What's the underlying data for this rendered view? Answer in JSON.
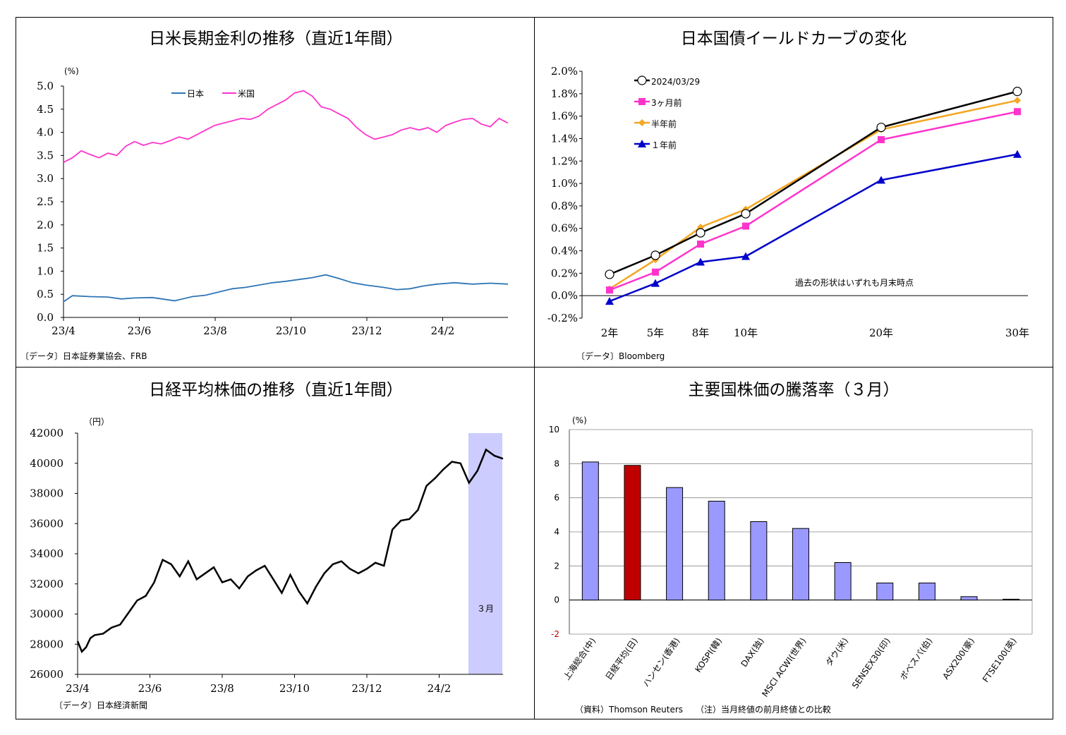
{
  "chart_data": [
    {
      "type": "line",
      "title": "日米長期金利の推移（直近1年間）",
      "ylabel": "(%)",
      "ylim": [
        0.0,
        5.0
      ],
      "yticks": [
        "0.0",
        "0.5",
        "1.0",
        "1.5",
        "2.0",
        "2.5",
        "3.0",
        "3.5",
        "4.0",
        "4.5",
        "5.0"
      ],
      "xticks": [
        "23/4",
        "23/6",
        "23/8",
        "23/10",
        "23/12",
        "24/2"
      ],
      "source": "〔データ〕日本証券業協会、FRB",
      "colors": {
        "japan": "#2e75b6",
        "us": "#ff33cc"
      },
      "series": [
        {
          "name": "日本",
          "x": [
            0,
            0.02,
            0.06,
            0.1,
            0.13,
            0.16,
            0.2,
            0.25,
            0.29,
            0.32,
            0.35,
            0.38,
            0.41,
            0.44,
            0.47,
            0.5,
            0.53,
            0.56,
            0.59,
            0.62,
            0.65,
            0.68,
            0.72,
            0.75,
            0.78,
            0.81,
            0.84,
            0.88,
            0.92,
            0.96,
            1.0
          ],
          "values": [
            0.34,
            0.47,
            0.45,
            0.44,
            0.4,
            0.42,
            0.43,
            0.36,
            0.45,
            0.48,
            0.55,
            0.62,
            0.65,
            0.7,
            0.75,
            0.78,
            0.82,
            0.86,
            0.92,
            0.84,
            0.75,
            0.7,
            0.65,
            0.6,
            0.62,
            0.68,
            0.72,
            0.75,
            0.72,
            0.74,
            0.72
          ]
        },
        {
          "name": "米国",
          "x": [
            0,
            0.02,
            0.04,
            0.06,
            0.08,
            0.1,
            0.12,
            0.14,
            0.16,
            0.18,
            0.2,
            0.22,
            0.24,
            0.26,
            0.28,
            0.3,
            0.32,
            0.34,
            0.36,
            0.38,
            0.4,
            0.42,
            0.44,
            0.46,
            0.48,
            0.5,
            0.52,
            0.54,
            0.56,
            0.58,
            0.6,
            0.62,
            0.64,
            0.66,
            0.68,
            0.7,
            0.72,
            0.74,
            0.76,
            0.78,
            0.8,
            0.82,
            0.84,
            0.86,
            0.88,
            0.9,
            0.92,
            0.94,
            0.96,
            0.98,
            1.0
          ],
          "values": [
            3.35,
            3.45,
            3.6,
            3.52,
            3.45,
            3.55,
            3.5,
            3.7,
            3.8,
            3.72,
            3.78,
            3.75,
            3.82,
            3.9,
            3.85,
            3.95,
            4.05,
            4.15,
            4.2,
            4.25,
            4.3,
            4.28,
            4.35,
            4.5,
            4.6,
            4.7,
            4.85,
            4.9,
            4.78,
            4.55,
            4.5,
            4.4,
            4.3,
            4.1,
            3.95,
            3.85,
            3.9,
            3.95,
            4.05,
            4.1,
            4.05,
            4.1,
            4.0,
            4.15,
            4.22,
            4.28,
            4.3,
            4.18,
            4.12,
            4.3,
            4.2
          ]
        }
      ]
    },
    {
      "type": "line",
      "title": "日本国債イールドカーブの変化",
      "ylim": [
        -0.2,
        2.0
      ],
      "yticks": [
        "-0.2%",
        "0.0%",
        "0.2%",
        "0.4%",
        "0.6%",
        "0.8%",
        "1.0%",
        "1.2%",
        "1.4%",
        "1.6%",
        "1.8%",
        "2.0%"
      ],
      "x": [
        2,
        5,
        8,
        10,
        20,
        30
      ],
      "xticks": [
        "2年",
        "5年",
        "8年",
        "10年",
        "20年",
        "30年"
      ],
      "note": "過去の形状はいずれも月末時点",
      "source": "〔データ〕Bloomberg",
      "series": [
        {
          "name": "2024/03/29",
          "color": "#000000",
          "marker": "circle",
          "values": [
            0.19,
            0.36,
            0.56,
            0.73,
            1.5,
            1.82
          ]
        },
        {
          "name": "3ヶ月前",
          "color": "#ff33cc",
          "marker": "square",
          "values": [
            0.05,
            0.21,
            0.46,
            0.62,
            1.39,
            1.64
          ]
        },
        {
          "name": "半年前",
          "color": "#f5a623",
          "marker": "diamond",
          "values": [
            0.06,
            0.32,
            0.61,
            0.77,
            1.48,
            1.74
          ]
        },
        {
          "name": "１年前",
          "color": "#0000cc",
          "marker": "triangle",
          "values": [
            -0.05,
            0.11,
            0.3,
            0.35,
            1.03,
            1.26
          ]
        }
      ]
    },
    {
      "type": "line",
      "title": "日経平均株価の推移（直近1年間）",
      "ylabel": "（円）",
      "ylim": [
        26000,
        42000
      ],
      "yticks": [
        "26000",
        "28000",
        "30000",
        "32000",
        "34000",
        "36000",
        "38000",
        "40000",
        "42000"
      ],
      "xticks": [
        "23/4",
        "23/6",
        "23/8",
        "23/10",
        "23/12",
        "24/2"
      ],
      "highlight_label": "３月",
      "highlight_color": "#ccccff",
      "source": "〔データ〕日本経済新聞",
      "series": [
        {
          "name": "日経平均",
          "color": "#000000",
          "x": [
            0,
            0.01,
            0.02,
            0.03,
            0.04,
            0.06,
            0.08,
            0.1,
            0.12,
            0.14,
            0.16,
            0.18,
            0.2,
            0.22,
            0.24,
            0.26,
            0.28,
            0.3,
            0.32,
            0.34,
            0.36,
            0.38,
            0.4,
            0.42,
            0.44,
            0.46,
            0.48,
            0.5,
            0.52,
            0.54,
            0.56,
            0.58,
            0.6,
            0.62,
            0.64,
            0.66,
            0.68,
            0.7,
            0.72,
            0.74,
            0.76,
            0.78,
            0.8,
            0.82,
            0.84,
            0.86,
            0.88,
            0.9,
            0.92,
            0.94,
            0.96,
            0.98,
            1.0
          ],
          "values": [
            28200,
            27500,
            27800,
            28400,
            28600,
            28700,
            29100,
            29300,
            30100,
            30900,
            31200,
            32100,
            33600,
            33300,
            32500,
            33500,
            32300,
            32700,
            33100,
            32100,
            32300,
            31700,
            32500,
            32900,
            33200,
            32300,
            31400,
            32600,
            31500,
            30700,
            31800,
            32700,
            33300,
            33500,
            33000,
            32700,
            33000,
            33400,
            33200,
            35600,
            36200,
            36300,
            36900,
            38500,
            39000,
            39600,
            40100,
            40000,
            38700,
            39500,
            40900,
            40500,
            40300
          ]
        }
      ]
    },
    {
      "type": "bar",
      "title": "主要国株価の騰落率（３月）",
      "ylabel": "(%)",
      "ylim": [
        -2,
        10
      ],
      "yticks": [
        "-2",
        "0",
        "2",
        "4",
        "6",
        "8",
        "10"
      ],
      "categories": [
        "上海総合(中)",
        "日経平均(日)",
        "ハンセン(香港)",
        "KOSPI(韓)",
        "DAX(独)",
        "MSCI ACWI(世界)",
        "ダウ(米)",
        "SENSEX30(印)",
        "ボベスパ(伯)",
        "ASX200(豪)",
        "FTSE100(英)"
      ],
      "values": [
        8.1,
        7.9,
        6.6,
        5.8,
        4.6,
        4.2,
        2.2,
        1.0,
        1.0,
        0.2,
        0.05
      ],
      "colors": {
        "bar": "#9999ff",
        "highlight": "#c00000",
        "negative_tick": "#c00000"
      },
      "highlight_index": 1,
      "source": "（資料）Thomson Reuters　　（注）当月終値の前月終値との比較"
    }
  ]
}
